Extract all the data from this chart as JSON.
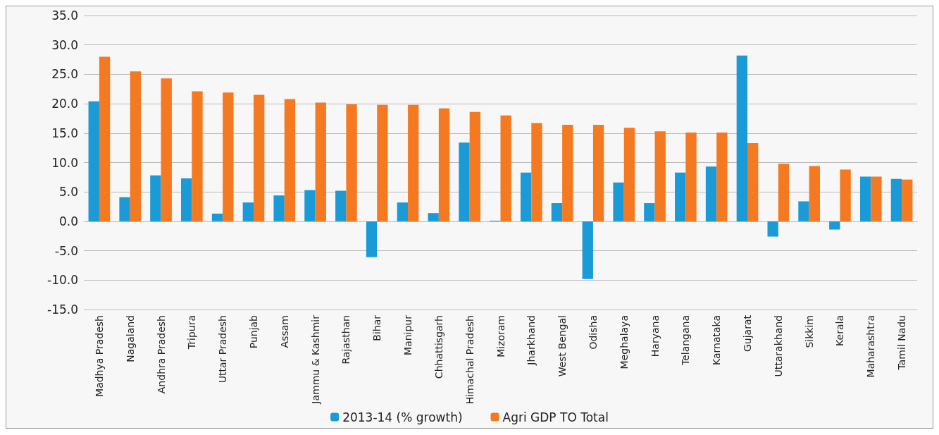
{
  "chart_data": {
    "type": "bar",
    "categories": [
      "Madhya Pradesh",
      "Nagaland",
      "Andhra Pradesh",
      "Tripura",
      "Uttar Pradesh",
      "Punjab",
      "Assam",
      "Jammu & Kashmir",
      "Rajasthan",
      "Bihar",
      "Manipur",
      "Chhattisgarh",
      "Himachal Pradesh",
      "Mizoram",
      "Jharkhand",
      "West Bengal",
      "Odisha",
      "Meghalaya",
      "Haryana",
      "Telangana",
      "Karnataka",
      "Gujarat",
      "Uttarakhand",
      "Sikkim",
      "Kerala",
      "Maharashtra",
      "Tamil Nadu"
    ],
    "series": [
      {
        "name": "2013-14 (% growth)",
        "color": "#1a9ad6",
        "values": [
          20.4,
          4.1,
          7.8,
          7.3,
          1.3,
          3.2,
          4.4,
          5.3,
          5.2,
          -6.1,
          3.2,
          1.4,
          13.4,
          0.1,
          8.3,
          3.1,
          -9.8,
          6.6,
          3.1,
          8.3,
          9.3,
          28.2,
          -2.6,
          3.4,
          -1.4,
          7.6,
          7.2
        ]
      },
      {
        "name": "Agri GDP TO Total",
        "color": "#f47920",
        "values": [
          28.0,
          25.5,
          24.3,
          22.1,
          21.9,
          21.5,
          20.8,
          20.2,
          19.9,
          19.8,
          19.8,
          19.2,
          18.6,
          18.0,
          16.7,
          16.4,
          16.4,
          15.9,
          15.3,
          15.1,
          15.1,
          13.3,
          9.8,
          9.4,
          8.8,
          7.6,
          7.1
        ]
      }
    ],
    "ylim": [
      -15,
      35
    ],
    "yticks": [
      {
        "value": -15,
        "label": "-15.0"
      },
      {
        "value": -10,
        "label": "-10.0"
      },
      {
        "value": -5,
        "label": "-5.0"
      },
      {
        "value": 0,
        "label": "0.0"
      },
      {
        "value": 5,
        "label": "5.0"
      },
      {
        "value": 10,
        "label": "10.0"
      },
      {
        "value": 15,
        "label": "15.0"
      },
      {
        "value": 20,
        "label": "20.0"
      },
      {
        "value": 25,
        "label": "25.0"
      },
      {
        "value": 30,
        "label": "30.0"
      },
      {
        "value": 35,
        "label": "35.0"
      }
    ],
    "grid": "y",
    "legend": "bottom"
  }
}
